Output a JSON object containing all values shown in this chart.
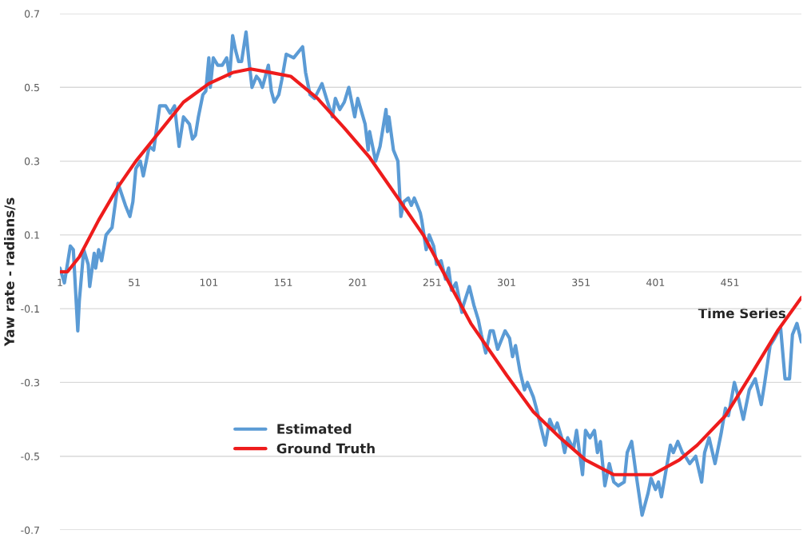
{
  "chart_data": {
    "type": "line",
    "xlabel": "Time Series",
    "ylabel": "Yaw rate - radians/s",
    "xlim": [
      1,
      499
    ],
    "xticks": [
      1,
      51,
      101,
      151,
      201,
      251,
      301,
      351,
      401,
      451
    ],
    "ylim": [
      -0.7,
      0.7
    ],
    "yticks": [
      -0.7,
      -0.5,
      -0.3,
      -0.1,
      0.1,
      0.3,
      0.5,
      0.7
    ],
    "grid": "y",
    "legend": "bottom left",
    "marker": "none",
    "line_style": "solid",
    "series": [
      {
        "name": "Estimated",
        "color": "#5b9bd5",
        "x": [
          1,
          4,
          8,
          10,
          13,
          14,
          17,
          20,
          21,
          24,
          25,
          27,
          29,
          32,
          36,
          40,
          45,
          48,
          50,
          52,
          55,
          57,
          61,
          64,
          65,
          68,
          72,
          75,
          78,
          81,
          84,
          88,
          90,
          92,
          94,
          97,
          99,
          101,
          102,
          104,
          107,
          110,
          113,
          115,
          117,
          119,
          121,
          123,
          126,
          128,
          130,
          133,
          135,
          137,
          141,
          143,
          145,
          148,
          150,
          153,
          158,
          164,
          166,
          169,
          172,
          177,
          180,
          184,
          186,
          189,
          192,
          195,
          199,
          201,
          206,
          208,
          209,
          213,
          216,
          220,
          221,
          222,
          225,
          228,
          230,
          232,
          235,
          237,
          239,
          243,
          244,
          247,
          249,
          252,
          254,
          257,
          260,
          262,
          264,
          267,
          271,
          272,
          276,
          279,
          282,
          284,
          287,
          290,
          292,
          295,
          300,
          303,
          305,
          307,
          310,
          313,
          315,
          319,
          321,
          324,
          327,
          330,
          333,
          335,
          338,
          340,
          342,
          346,
          348,
          352,
          354,
          357,
          360,
          362,
          364,
          367,
          370,
          373,
          376,
          380,
          382,
          385,
          388,
          392,
          396,
          398,
          401,
          403,
          405,
          408,
          411,
          413,
          416,
          419,
          421,
          424,
          428,
          432,
          434,
          437,
          441,
          445,
          448,
          450,
          454,
          456,
          460,
          464,
          468,
          472,
          474,
          478,
          481,
          485,
          488,
          491,
          493,
          496,
          499
        ],
        "values": [
          0.01,
          -0.03,
          0.07,
          0.06,
          -0.16,
          -0.08,
          0.06,
          0.02,
          -0.04,
          0.05,
          0.01,
          0.06,
          0.03,
          0.1,
          0.12,
          0.24,
          0.18,
          0.15,
          0.19,
          0.28,
          0.3,
          0.26,
          0.34,
          0.33,
          0.36,
          0.45,
          0.45,
          0.43,
          0.45,
          0.34,
          0.42,
          0.4,
          0.36,
          0.37,
          0.42,
          0.48,
          0.49,
          0.58,
          0.5,
          0.58,
          0.56,
          0.56,
          0.58,
          0.53,
          0.64,
          0.6,
          0.57,
          0.57,
          0.65,
          0.57,
          0.5,
          0.53,
          0.52,
          0.5,
          0.56,
          0.49,
          0.46,
          0.48,
          0.52,
          0.59,
          0.58,
          0.61,
          0.54,
          0.48,
          0.47,
          0.51,
          0.47,
          0.42,
          0.47,
          0.44,
          0.46,
          0.5,
          0.42,
          0.47,
          0.4,
          0.33,
          0.38,
          0.3,
          0.34,
          0.44,
          0.38,
          0.42,
          0.33,
          0.3,
          0.15,
          0.19,
          0.2,
          0.18,
          0.2,
          0.16,
          0.14,
          0.06,
          0.1,
          0.07,
          0.02,
          0.03,
          -0.02,
          0.01,
          -0.05,
          -0.03,
          -0.11,
          -0.09,
          -0.04,
          -0.09,
          -0.13,
          -0.17,
          -0.22,
          -0.16,
          -0.16,
          -0.21,
          -0.16,
          -0.18,
          -0.23,
          -0.2,
          -0.27,
          -0.32,
          -0.3,
          -0.34,
          -0.37,
          -0.42,
          -0.47,
          -0.4,
          -0.43,
          -0.41,
          -0.45,
          -0.49,
          -0.45,
          -0.48,
          -0.43,
          -0.55,
          -0.43,
          -0.45,
          -0.43,
          -0.49,
          -0.46,
          -0.58,
          -0.52,
          -0.57,
          -0.58,
          -0.57,
          -0.49,
          -0.46,
          -0.55,
          -0.66,
          -0.6,
          -0.56,
          -0.59,
          -0.57,
          -0.61,
          -0.54,
          -0.47,
          -0.49,
          -0.46,
          -0.49,
          -0.5,
          -0.52,
          -0.5,
          -0.57,
          -0.49,
          -0.45,
          -0.52,
          -0.44,
          -0.37,
          -0.39,
          -0.3,
          -0.33,
          -0.4,
          -0.32,
          -0.29,
          -0.36,
          -0.31,
          -0.2,
          -0.18,
          -0.15,
          -0.29,
          -0.29,
          -0.17,
          -0.14,
          -0.19
        ]
      },
      {
        "name": "Ground Truth",
        "color": "#ee1c1c",
        "x": [
          1,
          6,
          14,
          27,
          40,
          52,
          68,
          84,
          101,
          117,
          129,
          143,
          156,
          174,
          192,
          209,
          228,
          245,
          261,
          277,
          301,
          319,
          337,
          354,
          373,
          384,
          399,
          417,
          429,
          448,
          465,
          483,
          499
        ],
        "values": [
          0,
          0,
          0.04,
          0.14,
          0.23,
          0.3,
          0.38,
          0.46,
          0.51,
          0.54,
          0.55,
          0.54,
          0.53,
          0.47,
          0.39,
          0.31,
          0.2,
          0.1,
          -0.02,
          -0.14,
          -0.28,
          -0.38,
          -0.45,
          -0.51,
          -0.55,
          -0.55,
          -0.55,
          -0.51,
          -0.47,
          -0.39,
          -0.28,
          -0.16,
          -0.07
        ]
      }
    ]
  }
}
